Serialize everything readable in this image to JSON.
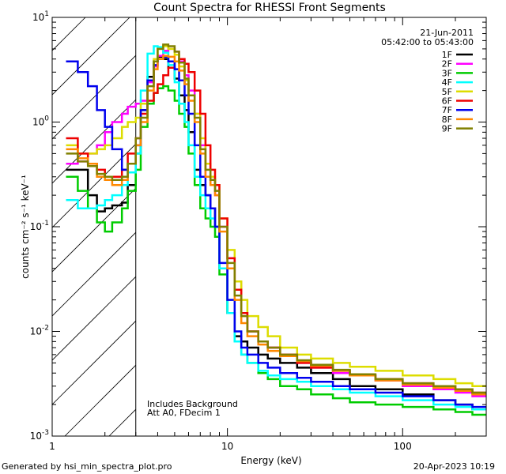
{
  "chart_data": {
    "type": "line",
    "title": "Count Spectra for RHESSI Front Segments",
    "xlabel": "Energy (keV)",
    "ylabel": "counts cm⁻² s⁻¹ keV⁻¹",
    "x_scale": "log",
    "y_scale": "log",
    "xlim": [
      1,
      300
    ],
    "ylim": [
      0.001,
      10
    ],
    "x_ticks": [
      {
        "value": 1,
        "label": "1"
      },
      {
        "value": 10,
        "label": "10"
      },
      {
        "value": 100,
        "label": "100"
      }
    ],
    "y_ticks": [
      {
        "value": 10,
        "base": "10",
        "exp": "1"
      },
      {
        "value": 1,
        "base": "10",
        "exp": "0"
      },
      {
        "value": 0.1,
        "base": "10",
        "exp": "-1"
      },
      {
        "value": 0.01,
        "base": "10",
        "exp": "-2"
      },
      {
        "value": 0.001,
        "base": "10",
        "exp": "-3"
      }
    ],
    "date": "21-Jun-2011",
    "time_range": "05:42:00 to 05:43:00",
    "threshold_keV": 3,
    "annotations": [
      "Includes Background",
      "Att A0, FDecim 1"
    ],
    "footer_left": "Generated by hsi_min_spectra_plot.pro",
    "footer_right": "20-Apr-2023 10:19",
    "energy_edges": [
      1.2,
      1.4,
      1.6,
      1.8,
      2.0,
      2.2,
      2.5,
      2.7,
      3.0,
      3.2,
      3.5,
      3.8,
      4.0,
      4.3,
      4.6,
      5.0,
      5.3,
      5.7,
      6.0,
      6.5,
      7.0,
      7.5,
      8.0,
      8.5,
      9.0,
      10,
      11,
      12,
      13,
      15,
      17,
      20,
      25,
      30,
      40,
      50,
      70,
      100,
      150,
      200,
      250,
      300
    ],
    "series": [
      {
        "name": "1F",
        "color": "#000000",
        "values": [
          0.35,
          0.35,
          0.2,
          0.14,
          0.15,
          0.16,
          0.17,
          0.25,
          0.5,
          1.3,
          2.7,
          3.8,
          4.2,
          4.0,
          3.3,
          2.6,
          1.8,
          1.3,
          0.8,
          0.35,
          0.25,
          0.2,
          0.15,
          0.1,
          0.04,
          0.015,
          0.009,
          0.008,
          0.007,
          0.006,
          0.0055,
          0.005,
          0.0045,
          0.004,
          0.0035,
          0.003,
          0.0028,
          0.0025,
          0.0022,
          0.002,
          0.0018
        ]
      },
      {
        "name": "2F",
        "color": "#ff00ff",
        "values": [
          0.4,
          0.42,
          0.5,
          0.6,
          0.8,
          1.0,
          1.2,
          1.4,
          1.5,
          1.6,
          2.4,
          3.4,
          4.3,
          4.8,
          5.0,
          4.7,
          3.8,
          2.8,
          2.0,
          1.2,
          0.6,
          0.3,
          0.25,
          0.2,
          0.1,
          0.05,
          0.03,
          0.015,
          0.01,
          0.008,
          0.007,
          0.006,
          0.005,
          0.0045,
          0.004,
          0.0038,
          0.0034,
          0.003,
          0.0028,
          0.0026,
          0.0024
        ]
      },
      {
        "name": "3F",
        "color": "#00cc00",
        "values": [
          0.3,
          0.22,
          0.15,
          0.11,
          0.09,
          0.11,
          0.15,
          0.22,
          0.35,
          0.9,
          1.5,
          1.9,
          2.1,
          2.2,
          2.0,
          1.6,
          1.2,
          0.9,
          0.5,
          0.25,
          0.15,
          0.12,
          0.1,
          0.08,
          0.035,
          0.015,
          0.008,
          0.006,
          0.005,
          0.004,
          0.0035,
          0.003,
          0.0028,
          0.0025,
          0.0023,
          0.0021,
          0.002,
          0.0019,
          0.0018,
          0.0017,
          0.0016
        ]
      },
      {
        "name": "4F",
        "color": "#00ffff",
        "values": [
          0.18,
          0.15,
          0.15,
          0.16,
          0.18,
          0.2,
          0.25,
          0.33,
          0.5,
          2.0,
          4.5,
          5.3,
          5.2,
          4.6,
          3.5,
          2.4,
          1.5,
          1.0,
          0.6,
          0.3,
          0.2,
          0.15,
          0.12,
          0.1,
          0.04,
          0.015,
          0.008,
          0.006,
          0.005,
          0.0042,
          0.0038,
          0.0035,
          0.0033,
          0.003,
          0.0028,
          0.0026,
          0.0024,
          0.0022,
          0.002,
          0.0019,
          0.0018
        ]
      },
      {
        "name": "5F",
        "color": "#dddd00",
        "values": [
          0.6,
          0.5,
          0.5,
          0.55,
          0.6,
          0.7,
          0.9,
          1.0,
          1.1,
          1.5,
          2.5,
          4.0,
          5.0,
          5.3,
          5.0,
          4.4,
          3.4,
          2.5,
          1.8,
          1.2,
          0.7,
          0.4,
          0.3,
          0.25,
          0.12,
          0.06,
          0.03,
          0.02,
          0.014,
          0.011,
          0.009,
          0.007,
          0.006,
          0.0055,
          0.005,
          0.0046,
          0.0042,
          0.0038,
          0.0035,
          0.0032,
          0.003
        ]
      },
      {
        "name": "6F",
        "color": "#ee0000",
        "values": [
          0.7,
          0.5,
          0.4,
          0.35,
          0.3,
          0.3,
          0.35,
          0.5,
          0.7,
          1.2,
          1.6,
          1.9,
          2.3,
          2.8,
          3.3,
          3.8,
          4.0,
          3.6,
          3.0,
          2.0,
          1.2,
          0.6,
          0.35,
          0.25,
          0.12,
          0.05,
          0.025,
          0.015,
          0.01,
          0.008,
          0.007,
          0.006,
          0.005,
          0.0045,
          0.0042,
          0.0038,
          0.0035,
          0.0032,
          0.003,
          0.0028,
          0.0026
        ]
      },
      {
        "name": "7F",
        "color": "#0000ee",
        "values": [
          3.8,
          3.0,
          2.2,
          1.3,
          0.9,
          0.55,
          0.35,
          0.4,
          0.6,
          1.3,
          2.5,
          3.5,
          4.0,
          4.2,
          3.8,
          3.2,
          2.5,
          1.8,
          1.2,
          0.6,
          0.3,
          0.2,
          0.15,
          0.1,
          0.045,
          0.02,
          0.01,
          0.007,
          0.006,
          0.005,
          0.0045,
          0.004,
          0.0036,
          0.0033,
          0.003,
          0.0028,
          0.0026,
          0.0024,
          0.0022,
          0.002,
          0.0019
        ]
      },
      {
        "name": "8F",
        "color": "#ff8800",
        "values": [
          0.55,
          0.45,
          0.4,
          0.3,
          0.28,
          0.25,
          0.28,
          0.4,
          0.6,
          1.0,
          2.0,
          3.2,
          4.0,
          4.3,
          4.2,
          3.8,
          3.1,
          2.3,
          1.6,
          1.0,
          0.5,
          0.3,
          0.25,
          0.2,
          0.09,
          0.04,
          0.02,
          0.012,
          0.009,
          0.0075,
          0.0065,
          0.0058,
          0.0052,
          0.0047,
          0.0042,
          0.0038,
          0.0034,
          0.0031,
          0.0029,
          0.0027,
          0.0025
        ]
      },
      {
        "name": "9F",
        "color": "#808000",
        "values": [
          0.5,
          0.42,
          0.38,
          0.32,
          0.3,
          0.28,
          0.3,
          0.4,
          0.7,
          1.1,
          2.2,
          3.8,
          5.0,
          5.5,
          5.3,
          4.7,
          3.7,
          2.6,
          1.8,
          1.1,
          0.55,
          0.35,
          0.28,
          0.22,
          0.1,
          0.045,
          0.022,
          0.014,
          0.01,
          0.008,
          0.007,
          0.006,
          0.0053,
          0.0048,
          0.0043,
          0.0039,
          0.0035,
          0.0032,
          0.003,
          0.0028,
          0.0026
        ]
      }
    ]
  }
}
